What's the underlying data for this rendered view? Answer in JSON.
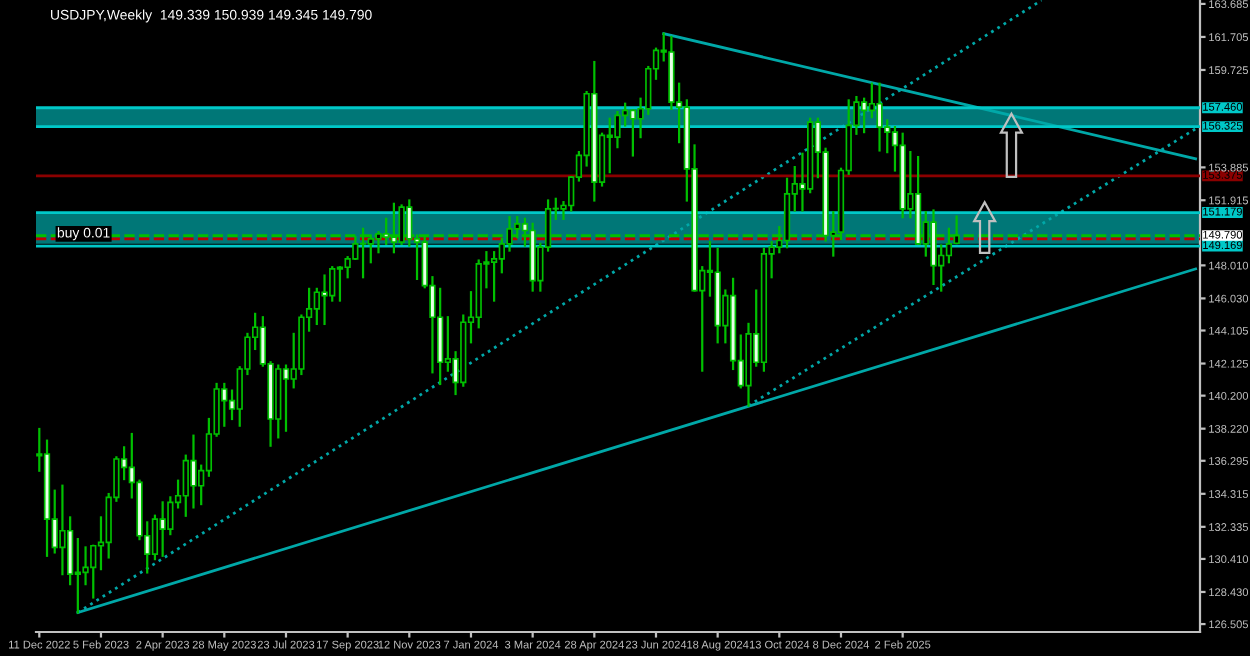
{
  "chart_data": {
    "type": "candlestick",
    "title": "USDJPY,Weekly  149.339 150.939 149.345 149.790",
    "annotations": [
      "buy 0.01"
    ],
    "x": [
      "2022-12-11",
      "2022-12-18",
      "2022-12-25",
      "2023-01-01",
      "2023-01-08",
      "2023-01-15",
      "2023-01-22",
      "2023-01-29",
      "2023-02-05",
      "2023-02-12",
      "2023-02-19",
      "2023-02-26",
      "2023-03-05",
      "2023-03-12",
      "2023-03-19",
      "2023-03-26",
      "2023-04-02",
      "2023-04-09",
      "2023-04-16",
      "2023-04-23",
      "2023-04-30",
      "2023-05-07",
      "2023-05-14",
      "2023-05-21",
      "2023-05-28",
      "2023-06-04",
      "2023-06-11",
      "2023-06-18",
      "2023-06-25",
      "2023-07-02",
      "2023-07-09",
      "2023-07-16",
      "2023-07-23",
      "2023-07-30",
      "2023-08-06",
      "2023-08-13",
      "2023-08-20",
      "2023-08-27",
      "2023-09-03",
      "2023-09-10",
      "2023-09-17",
      "2023-09-24",
      "2023-10-01",
      "2023-10-08",
      "2023-10-15",
      "2023-10-22",
      "2023-10-29",
      "2023-11-05",
      "2023-11-12",
      "2023-11-19",
      "2023-11-26",
      "2023-12-03",
      "2023-12-10",
      "2023-12-17",
      "2023-12-24",
      "2023-12-31",
      "2024-01-07",
      "2024-01-14",
      "2024-01-21",
      "2024-01-28",
      "2024-02-04",
      "2024-02-11",
      "2024-02-18",
      "2024-02-25",
      "2024-03-03",
      "2024-03-10",
      "2024-03-17",
      "2024-03-24",
      "2024-03-31",
      "2024-04-07",
      "2024-04-14",
      "2024-04-21",
      "2024-04-28",
      "2024-05-05",
      "2024-05-12",
      "2024-05-19",
      "2024-05-26",
      "2024-06-02",
      "2024-06-09",
      "2024-06-16",
      "2024-06-23",
      "2024-06-30",
      "2024-07-07",
      "2024-07-14",
      "2024-07-21",
      "2024-07-28",
      "2024-08-04",
      "2024-08-11",
      "2024-08-18",
      "2024-08-25",
      "2024-09-01",
      "2024-09-08",
      "2024-09-15",
      "2024-09-22",
      "2024-09-29",
      "2024-10-06",
      "2024-10-13",
      "2024-10-20",
      "2024-10-27",
      "2024-11-03",
      "2024-11-10",
      "2024-11-17",
      "2024-11-24",
      "2024-12-01",
      "2024-12-08",
      "2024-12-15",
      "2024-12-22",
      "2024-12-29",
      "2025-01-05",
      "2025-01-12",
      "2025-01-19",
      "2025-01-26",
      "2025-02-02",
      "2025-02-09",
      "2025-02-16",
      "2025-02-23",
      "2025-03-02",
      "2025-03-09",
      "2025-03-16",
      "2025-03-23"
    ],
    "ohlc": [
      [
        136.6,
        138.2,
        135.7,
        136.7
      ],
      [
        136.7,
        137.5,
        130.6,
        132.8
      ],
      [
        132.8,
        134.5,
        130.8,
        131.1
      ],
      [
        131.1,
        134.8,
        129.5,
        132.1
      ],
      [
        132.1,
        132.9,
        128.9,
        129.5
      ],
      [
        129.5,
        131.6,
        127.2,
        129.6
      ],
      [
        129.6,
        131.1,
        128.9,
        129.9
      ],
      [
        129.9,
        131.2,
        128.1,
        131.2
      ],
      [
        131.2,
        132.9,
        129.8,
        131.4
      ],
      [
        131.4,
        134.3,
        130.5,
        134.1
      ],
      [
        134.1,
        136.5,
        133.9,
        136.4
      ],
      [
        136.4,
        137.1,
        135.2,
        135.9
      ],
      [
        135.9,
        137.9,
        134.1,
        135.0
      ],
      [
        135.0,
        135.1,
        131.6,
        131.8
      ],
      [
        131.8,
        132.6,
        129.6,
        130.7
      ],
      [
        130.7,
        133.0,
        130.4,
        132.8
      ],
      [
        132.8,
        133.8,
        130.6,
        132.2
      ],
      [
        132.2,
        134.1,
        131.9,
        133.8
      ],
      [
        133.8,
        135.1,
        133.5,
        134.2
      ],
      [
        134.2,
        136.6,
        133.0,
        136.3
      ],
      [
        136.3,
        137.8,
        133.5,
        134.8
      ],
      [
        134.8,
        136.0,
        133.7,
        135.7
      ],
      [
        135.7,
        138.8,
        135.4,
        137.9
      ],
      [
        137.9,
        140.9,
        137.8,
        140.6
      ],
      [
        140.6,
        140.9,
        138.4,
        139.9
      ],
      [
        139.9,
        140.5,
        138.8,
        139.4
      ],
      [
        139.4,
        141.9,
        138.4,
        141.8
      ],
      [
        141.8,
        143.9,
        141.5,
        143.7
      ],
      [
        143.7,
        145.1,
        143.0,
        144.3
      ],
      [
        144.3,
        144.9,
        142.0,
        142.1
      ],
      [
        142.1,
        142.2,
        137.2,
        138.8
      ],
      [
        138.8,
        142.0,
        137.7,
        141.8
      ],
      [
        141.8,
        142.0,
        138.1,
        141.2
      ],
      [
        141.2,
        143.9,
        140.7,
        141.8
      ],
      [
        141.8,
        145.0,
        141.5,
        144.9
      ],
      [
        144.9,
        146.6,
        144.1,
        145.4
      ],
      [
        145.4,
        146.6,
        144.5,
        146.4
      ],
      [
        146.4,
        147.4,
        144.5,
        146.2
      ],
      [
        146.2,
        147.9,
        145.9,
        147.8
      ],
      [
        147.8,
        147.9,
        145.9,
        147.9
      ],
      [
        147.9,
        148.5,
        147.3,
        148.4
      ],
      [
        148.4,
        149.7,
        148.4,
        149.3
      ],
      [
        149.3,
        150.2,
        147.3,
        149.3
      ],
      [
        149.3,
        149.8,
        148.2,
        149.6
      ],
      [
        149.6,
        150.0,
        148.8,
        149.9
      ],
      [
        149.9,
        150.8,
        149.3,
        149.7
      ],
      [
        149.7,
        151.7,
        148.8,
        149.4
      ],
      [
        149.4,
        151.6,
        149.3,
        151.5
      ],
      [
        151.5,
        151.9,
        149.2,
        149.6
      ],
      [
        149.6,
        149.8,
        147.2,
        149.4
      ],
      [
        149.4,
        149.7,
        146.7,
        146.8
      ],
      [
        146.8,
        147.3,
        141.6,
        144.9
      ],
      [
        144.9,
        146.6,
        140.9,
        142.2
      ],
      [
        142.2,
        144.9,
        141.7,
        142.4
      ],
      [
        142.4,
        142.8,
        140.3,
        141.0
      ],
      [
        141.0,
        145.0,
        140.8,
        144.6
      ],
      [
        144.6,
        146.4,
        143.4,
        144.9
      ],
      [
        144.9,
        148.3,
        144.3,
        148.1
      ],
      [
        148.1,
        148.8,
        146.7,
        148.2
      ],
      [
        148.2,
        148.8,
        145.9,
        148.4
      ],
      [
        148.4,
        149.6,
        147.6,
        149.3
      ],
      [
        149.3,
        150.9,
        148.9,
        150.2
      ],
      [
        150.2,
        150.9,
        149.7,
        150.5
      ],
      [
        150.5,
        150.8,
        149.2,
        150.1
      ],
      [
        150.1,
        150.5,
        146.5,
        147.1
      ],
      [
        147.1,
        149.3,
        146.5,
        149.1
      ],
      [
        149.1,
        151.9,
        148.9,
        151.4
      ],
      [
        151.4,
        152.0,
        150.8,
        151.4
      ],
      [
        151.4,
        151.8,
        150.8,
        151.6
      ],
      [
        151.6,
        153.3,
        151.3,
        153.3
      ],
      [
        153.3,
        154.8,
        153.1,
        154.6
      ],
      [
        154.6,
        158.4,
        154.0,
        158.3
      ],
      [
        158.3,
        160.2,
        151.9,
        153.0
      ],
      [
        153.0,
        155.9,
        152.8,
        155.8
      ],
      [
        155.8,
        156.8,
        153.6,
        155.7
      ],
      [
        155.7,
        157.2,
        155.1,
        157.0
      ],
      [
        157.0,
        157.7,
        156.4,
        157.3
      ],
      [
        157.3,
        157.3,
        154.6,
        156.8
      ],
      [
        156.8,
        158.0,
        155.7,
        157.4
      ],
      [
        157.4,
        159.9,
        157.1,
        159.8
      ],
      [
        159.8,
        161.0,
        159.2,
        160.9
      ],
      [
        160.9,
        161.9,
        160.3,
        160.8
      ],
      [
        160.8,
        161.7,
        157.4,
        157.8
      ],
      [
        157.8,
        158.9,
        155.4,
        157.5
      ],
      [
        157.5,
        157.9,
        151.9,
        153.8
      ],
      [
        153.8,
        155.2,
        146.5,
        146.5
      ],
      [
        146.5,
        147.9,
        141.7,
        147.7
      ],
      [
        147.7,
        149.4,
        146.2,
        147.6
      ],
      [
        147.6,
        149.0,
        143.4,
        144.4
      ],
      [
        144.4,
        146.5,
        143.4,
        146.2
      ],
      [
        146.2,
        147.2,
        141.8,
        142.3
      ],
      [
        142.3,
        143.8,
        140.7,
        140.8
      ],
      [
        140.8,
        144.5,
        139.6,
        143.9
      ],
      [
        143.9,
        146.5,
        142.0,
        142.2
      ],
      [
        142.2,
        149.0,
        141.7,
        148.7
      ],
      [
        148.7,
        149.4,
        147.3,
        149.1
      ],
      [
        149.1,
        150.3,
        148.8,
        149.5
      ],
      [
        149.5,
        153.2,
        149.1,
        152.3
      ],
      [
        152.3,
        153.9,
        151.3,
        152.9
      ],
      [
        152.9,
        154.7,
        151.3,
        152.6
      ],
      [
        152.6,
        156.8,
        152.4,
        156.6
      ],
      [
        156.6,
        156.8,
        153.3,
        154.8
      ],
      [
        154.8,
        155.0,
        149.5,
        149.8
      ],
      [
        149.8,
        151.2,
        148.6,
        150.0
      ],
      [
        150.0,
        153.8,
        149.6,
        153.7
      ],
      [
        153.7,
        157.9,
        153.5,
        156.4
      ],
      [
        156.4,
        158.1,
        155.9,
        157.8
      ],
      [
        157.8,
        158.0,
        156.0,
        157.3
      ],
      [
        157.3,
        158.9,
        156.9,
        157.7
      ],
      [
        157.7,
        158.9,
        154.9,
        156.3
      ],
      [
        156.3,
        156.7,
        154.8,
        156.0
      ],
      [
        156.0,
        156.3,
        153.7,
        155.2
      ],
      [
        155.2,
        155.9,
        150.9,
        151.4
      ],
      [
        151.4,
        154.8,
        150.9,
        152.3
      ],
      [
        152.3,
        154.5,
        149.3,
        149.3
      ],
      [
        149.3,
        151.2,
        148.6,
        150.6
      ],
      [
        150.6,
        151.3,
        146.9,
        148.0
      ],
      [
        148.0,
        149.2,
        146.5,
        148.6
      ],
      [
        148.6,
        150.2,
        148.2,
        149.3
      ],
      [
        149.339,
        150.939,
        149.339,
        149.79
      ]
    ],
    "series": [
      {
        "type": "line",
        "x": [
          "2023-01-15",
          "2025-10-26"
        ],
        "values": [
          127.2,
          147.8
        ],
        "color": "#00a8a8",
        "line_style": "solid"
      },
      {
        "type": "line",
        "x": [
          "2024-06-30",
          "2025-10-26"
        ],
        "values": [
          161.9,
          154.4
        ],
        "color": "#00a8a8",
        "line_style": "solid"
      },
      {
        "type": "line",
        "x": [
          "2023-01-15",
          "2025-06-08"
        ],
        "values": [
          127.2,
          163.9
        ],
        "color": "#00a8a8",
        "line_style": "dotted"
      },
      {
        "type": "line",
        "x": [
          "2024-09-15",
          "2025-10-26"
        ],
        "values": [
          139.6,
          156.2
        ],
        "color": "#00a8a8",
        "line_style": "dotted"
      }
    ],
    "ref_lines": [
      {
        "axis": "y",
        "value": 157.46,
        "label": "157.460",
        "color": "#00c8c8"
      },
      {
        "axis": "y",
        "value": 156.325,
        "label": "156.325",
        "color": "#00c8c8"
      },
      {
        "axis": "y",
        "value": 153.375,
        "label": "153.375",
        "color": "#8b0000"
      },
      {
        "axis": "y",
        "value": 151.179,
        "label": "151.179",
        "color": "#00c8c8"
      },
      {
        "axis": "y",
        "value": 149.79,
        "label": "149.790",
        "color": "#00c000",
        "line_style": "dashed"
      },
      {
        "axis": "y",
        "value": 149.6,
        "color": "#c00000",
        "line_style": "dashed"
      },
      {
        "axis": "y",
        "value": 149.169,
        "label": "149.169",
        "color": "#00c8c8"
      }
    ],
    "bands": [
      {
        "axis": "y",
        "from": 156.325,
        "to": 157.46,
        "color": "#008c8c"
      },
      {
        "axis": "y",
        "from": 149.3,
        "to": 151.179,
        "color": "#008c8c"
      }
    ],
    "xlim": [
      "2022-12-08",
      "2025-10-30"
    ],
    "ylim": [
      126.03,
      163.92
    ],
    "xticks": [
      {
        "value": "2022-12-11",
        "label": "11 Dec 2022"
      },
      {
        "value": "2023-02-05",
        "label": "5 Feb 2023"
      },
      {
        "value": "2023-04-02",
        "label": "2 Apr 2023"
      },
      {
        "value": "2023-05-28",
        "label": "28 May 2023"
      },
      {
        "value": "2023-07-23",
        "label": "23 Jul 2023"
      },
      {
        "value": "2023-09-17",
        "label": "17 Sep 2023"
      },
      {
        "value": "2023-11-12",
        "label": "12 Nov 2023"
      },
      {
        "value": "2024-01-07",
        "label": "7 Jan 2024"
      },
      {
        "value": "2024-03-03",
        "label": "3 Mar 2024"
      },
      {
        "value": "2024-04-28",
        "label": "28 Apr 2024"
      },
      {
        "value": "2024-06-23",
        "label": "23 Jun 2024"
      },
      {
        "value": "2024-08-18",
        "label": "18 Aug 2024"
      },
      {
        "value": "2024-10-13",
        "label": "13 Oct 2024"
      },
      {
        "value": "2024-12-08",
        "label": "8 Dec 2024"
      },
      {
        "value": "2025-02-02",
        "label": "2 Feb 2025"
      }
    ],
    "yticks": [
      {
        "value": 163.685,
        "label": "163.685"
      },
      {
        "value": 161.705,
        "label": "161.705"
      },
      {
        "value": 159.725,
        "label": "159.725"
      },
      {
        "value": 153.885,
        "label": "153.885"
      },
      {
        "value": 151.915,
        "label": "151.915"
      },
      {
        "value": 148.01,
        "label": "148.010"
      },
      {
        "value": 146.03,
        "label": "146.030"
      },
      {
        "value": 144.105,
        "label": "144.105"
      },
      {
        "value": 142.125,
        "label": "142.125"
      },
      {
        "value": 140.2,
        "label": "140.200"
      },
      {
        "value": 138.22,
        "label": "138.220"
      },
      {
        "value": 136.295,
        "label": "136.295"
      },
      {
        "value": 134.315,
        "label": "134.315"
      },
      {
        "value": 132.335,
        "label": "132.335"
      },
      {
        "value": 130.41,
        "label": "130.410"
      },
      {
        "value": 128.43,
        "label": "128.430"
      },
      {
        "value": 126.505,
        "label": "126.505"
      }
    ],
    "grid": false,
    "legend": false
  }
}
